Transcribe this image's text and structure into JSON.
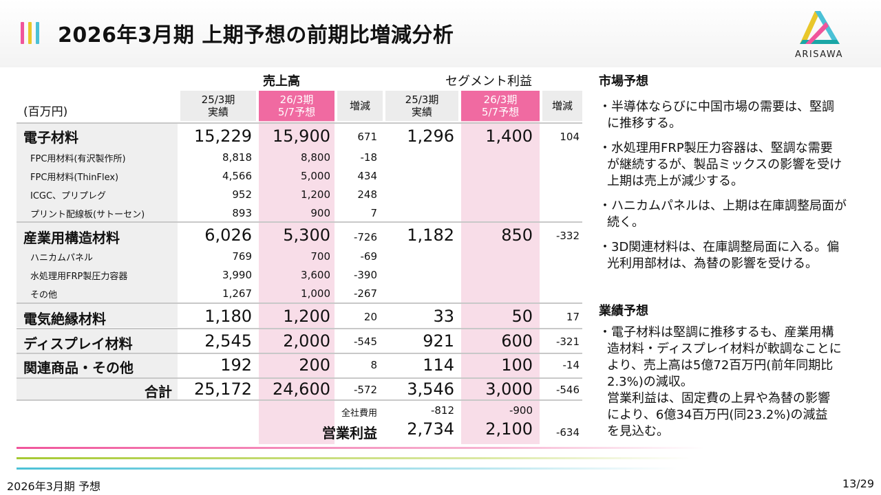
{
  "header": {
    "title": "2026年3月期 上期予想の前期比増減分析",
    "logo_text": "ARISAWA",
    "accent_colors": [
      "#f0559b",
      "#e9c72b",
      "#4bc1d6"
    ]
  },
  "table": {
    "group_sales": "売上高",
    "group_profit": "セグメント利益",
    "unit": "(百万円)",
    "col_prev": [
      "25/3期",
      "実績"
    ],
    "col_fcst": [
      "26/3期",
      "5/7予想"
    ],
    "col_diff": "増減",
    "rows": [
      {
        "label": "電子材料",
        "s_prev": "15,229",
        "s_fcst": "15,900",
        "s_diff": "671",
        "p_prev": "1,296",
        "p_fcst": "1,400",
        "p_diff": "104"
      },
      {
        "label": "FPC用材料(有沢製作所)",
        "s_prev": "8,818",
        "s_fcst": "8,800",
        "s_diff": "-18"
      },
      {
        "label": "FPC用材料(ThinFlex)",
        "s_prev": "4,566",
        "s_fcst": "5,000",
        "s_diff": "434"
      },
      {
        "label": "ICGC、プリプレグ",
        "s_prev": "952",
        "s_fcst": "1,200",
        "s_diff": "248"
      },
      {
        "label": "プリント配線板(サトーセン)",
        "s_prev": "893",
        "s_fcst": "900",
        "s_diff": "7"
      },
      {
        "label": "産業用構造材料",
        "s_prev": "6,026",
        "s_fcst": "5,300",
        "s_diff": "-726",
        "p_prev": "1,182",
        "p_fcst": "850",
        "p_diff": "-332"
      },
      {
        "label": "ハニカムパネル",
        "s_prev": "769",
        "s_fcst": "700",
        "s_diff": "-69"
      },
      {
        "label": "水処理用FRP製圧力容器",
        "s_prev": "3,990",
        "s_fcst": "3,600",
        "s_diff": "-390"
      },
      {
        "label": "その他",
        "s_prev": "1,267",
        "s_fcst": "1,000",
        "s_diff": "-267"
      },
      {
        "label": "電気絶縁材料",
        "s_prev": "1,180",
        "s_fcst": "1,200",
        "s_diff": "20",
        "p_prev": "33",
        "p_fcst": "50",
        "p_diff": "17"
      },
      {
        "label": "ディスプレイ材料",
        "s_prev": "2,545",
        "s_fcst": "2,000",
        "s_diff": "-545",
        "p_prev": "921",
        "p_fcst": "600",
        "p_diff": "-321"
      },
      {
        "label": "関連商品・その他",
        "s_prev": "192",
        "s_fcst": "200",
        "s_diff": "8",
        "p_prev": "114",
        "p_fcst": "100",
        "p_diff": "-14"
      },
      {
        "label": "合計",
        "s_prev": "25,172",
        "s_fcst": "24,600",
        "s_diff": "-572",
        "p_prev": "3,546",
        "p_fcst": "3,000",
        "p_diff": "-546"
      }
    ],
    "corp_exp": {
      "label": "全社費用",
      "prev": "-812",
      "fcst": "-900"
    },
    "op_profit": {
      "label": "営業利益",
      "prev": "2,734",
      "fcst": "2,100",
      "diff": "-634"
    }
  },
  "market": {
    "heading": "市場予想",
    "bullets": [
      [
        "・半導体ならびに中国市場の需要は、堅調",
        "に推移する。"
      ],
      [
        "・水処理用FRP製圧力容器は、堅調な需要",
        "が継続するが、製品ミックスの影響を受け",
        "上期は売上が減少する。"
      ],
      [
        "・ハニカムパネルは、上期は在庫調整局面が",
        "続く。"
      ],
      [
        "・3D関連材料は、在庫調整局面に入る。偏",
        "光利用部材は、為替の影響を受ける。"
      ]
    ]
  },
  "results": {
    "heading": "業績予想",
    "lines": [
      "・電子材料は堅調に推移するも、産業用構",
      "造材料・ディスプレイ材料が軟調なことに",
      "より、売上高は5億72百万円(前年同期比",
      "2.3%)の減収。",
      "営業利益は、固定費の上昇や為替の影響",
      "により、6億34百万円(同23.2%)の減益",
      "を見込む。"
    ]
  },
  "footer": {
    "left": "2026年3月期 予想",
    "right": "13/29"
  }
}
